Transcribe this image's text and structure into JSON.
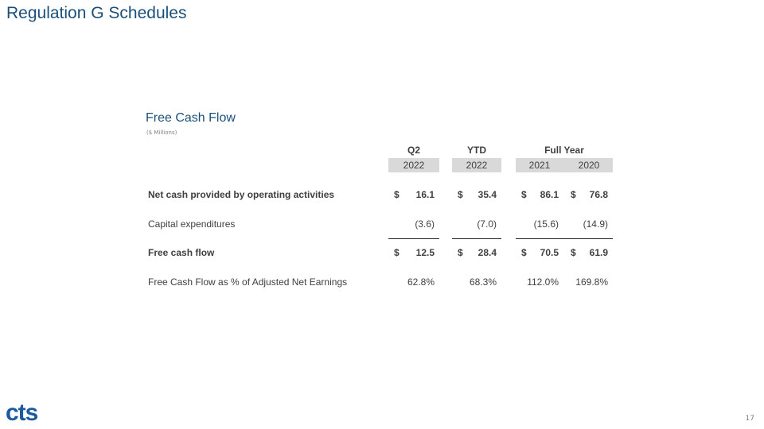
{
  "header": {
    "title": "Regulation G Schedules"
  },
  "table": {
    "title": "Free Cash Flow",
    "subtitle": "($ Millions)",
    "groups": [
      {
        "label": "Q2",
        "years": [
          "2022"
        ]
      },
      {
        "label": "YTD",
        "years": [
          "2022"
        ]
      },
      {
        "label": "Full Year",
        "years": [
          "2021",
          "2020"
        ]
      }
    ],
    "rows": [
      {
        "label": "Net cash provided by operating activities",
        "bold": true,
        "cells": [
          {
            "symbol": "$",
            "text": "16.1"
          },
          {
            "symbol": "$",
            "text": "35.4"
          },
          {
            "symbol": "$",
            "text": "86.1"
          },
          {
            "symbol": "$",
            "text": "76.8"
          }
        ]
      },
      {
        "label": "Capital expenditures",
        "cells": [
          {
            "text": "(3.6)"
          },
          {
            "text": "(7.0)"
          },
          {
            "text": "(15.6)"
          },
          {
            "text": "(14.9)"
          }
        ]
      },
      {
        "label": "Free cash flow",
        "bold": true,
        "rule_above": true,
        "cells": [
          {
            "symbol": "$",
            "text": "12.5"
          },
          {
            "symbol": "$",
            "text": "28.4"
          },
          {
            "symbol": "$",
            "text": "70.5"
          },
          {
            "symbol": "$",
            "text": "61.9"
          }
        ]
      },
      {
        "label": "Free Cash Flow as % of Adjusted Net Earnings",
        "cells": [
          {
            "text": "62.8%"
          },
          {
            "text": "68.3%"
          },
          {
            "text": "112.0%"
          },
          {
            "text": "169.8%"
          }
        ]
      }
    ]
  },
  "footer": {
    "logo": "cts",
    "page_number": "17"
  }
}
